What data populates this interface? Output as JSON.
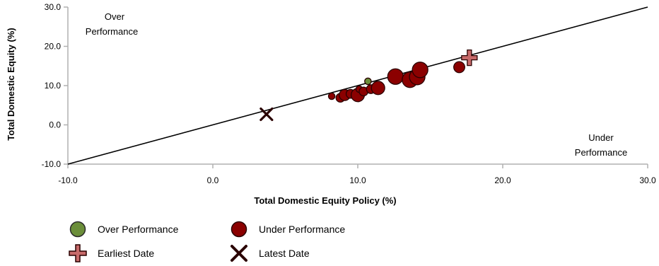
{
  "chart_data": {
    "type": "scatter",
    "xlabel": "Total Domestic Equity Policy (%)",
    "ylabel": "Total Domestic Equity (%)",
    "xlim": [
      -10,
      30
    ],
    "ylim": [
      -10,
      30
    ],
    "xticks": [
      "-10.0",
      "0.0",
      "10.0",
      "20.0",
      "30.0"
    ],
    "yticks": [
      "-10.0",
      "0.0",
      "10.0",
      "20.0",
      "30.0"
    ],
    "xtick_values": [
      -10,
      0,
      10,
      20,
      30
    ],
    "ytick_values": [
      -10,
      0,
      10,
      20,
      30
    ],
    "grid": false,
    "reference_line": "y = x",
    "region_labels": {
      "over": [
        "Over",
        "Performance"
      ],
      "under": [
        "Under",
        "Performance"
      ]
    },
    "colors": {
      "over": "#6b8e3a",
      "under": "#8b0000",
      "edge": "#2a0000",
      "line": "#000000",
      "axis": "#b0b0b0"
    },
    "series": [
      {
        "name": "Under Performance",
        "points": [
          {
            "x": 8.2,
            "y": 7.3,
            "s": 1
          },
          {
            "x": 8.8,
            "y": 6.9,
            "s": 2
          },
          {
            "x": 9.1,
            "y": 7.6,
            "s": 3
          },
          {
            "x": 9.5,
            "y": 7.9,
            "s": 2
          },
          {
            "x": 10.0,
            "y": 7.6,
            "s": 4
          },
          {
            "x": 10.1,
            "y": 9.1,
            "s": 1
          },
          {
            "x": 10.4,
            "y": 8.5,
            "s": 2
          },
          {
            "x": 10.9,
            "y": 9.1,
            "s": 2
          },
          {
            "x": 11.4,
            "y": 9.4,
            "s": 4
          },
          {
            "x": 12.6,
            "y": 12.3,
            "s": 5
          },
          {
            "x": 13.6,
            "y": 11.5,
            "s": 5
          },
          {
            "x": 14.1,
            "y": 12.2,
            "s": 5
          },
          {
            "x": 14.3,
            "y": 14.0,
            "s": 5
          },
          {
            "x": 17.0,
            "y": 14.7,
            "s": 3
          }
        ]
      },
      {
        "name": "Over Performance",
        "points": [
          {
            "x": 10.7,
            "y": 11.1,
            "s": 1
          }
        ]
      }
    ],
    "earliest": {
      "x": 17.7,
      "y": 17.1
    },
    "latest": {
      "x": 3.7,
      "y": 2.7
    },
    "legend": [
      {
        "key": "over",
        "label": "Over Performance",
        "symbol": "circle-green"
      },
      {
        "key": "under",
        "label": "Under Performance",
        "symbol": "circle-red"
      },
      {
        "key": "earliest",
        "label": "Earliest Date",
        "symbol": "plus-icon"
      },
      {
        "key": "latest",
        "label": "Latest Date",
        "symbol": "x-icon"
      }
    ]
  }
}
